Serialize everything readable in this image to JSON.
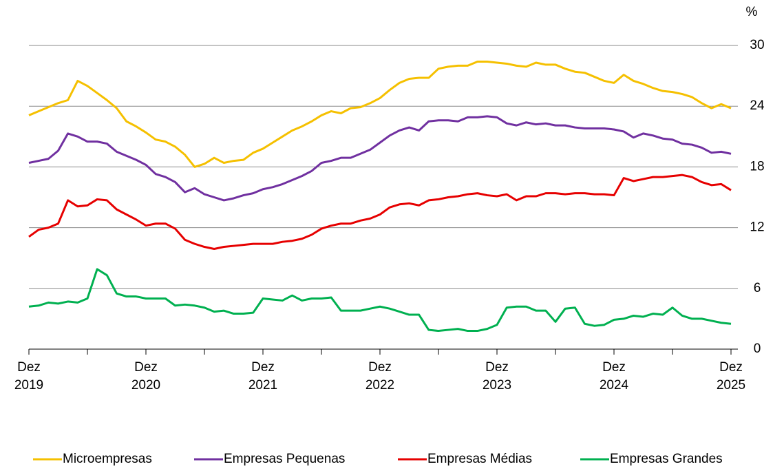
{
  "chart_data": {
    "type": "line",
    "ylabel": "%",
    "categories": [
      "Dez 2019",
      null,
      null,
      null,
      null,
      null,
      null,
      null,
      null,
      null,
      null,
      null,
      "Dez 2020",
      null,
      null,
      null,
      null,
      null,
      null,
      null,
      null,
      null,
      null,
      null,
      "Dez 2021",
      null,
      null,
      null,
      null,
      null,
      null,
      null,
      null,
      null,
      null,
      null,
      "Dez 2022",
      null,
      null,
      null,
      null,
      null,
      null,
      null,
      null,
      null,
      null,
      null,
      "Dez 2023",
      null,
      null,
      null,
      null,
      null,
      null,
      null,
      null,
      null,
      null,
      null,
      "Dez 2024",
      null,
      null,
      null,
      null,
      null,
      null,
      null,
      null,
      null,
      null,
      null,
      "Dez 2025"
    ],
    "ylim": [
      0,
      30
    ],
    "yticks": [
      0,
      6,
      12,
      18,
      24,
      30
    ],
    "grid": true,
    "legend": "bottom",
    "series": [
      {
        "name": "Microempresas",
        "color": "#f5c000",
        "values": [
          23.1,
          23.5,
          23.9,
          24.3,
          24.6,
          26.5,
          26.0,
          25.3,
          24.6,
          23.8,
          22.5,
          22.0,
          21.4,
          20.7,
          20.5,
          20.0,
          19.2,
          18.0,
          18.3,
          18.9,
          18.4,
          18.6,
          18.7,
          19.4,
          19.8,
          20.4,
          21.0,
          21.6,
          22.0,
          22.5,
          23.1,
          23.5,
          23.3,
          23.8,
          23.9,
          24.3,
          24.8,
          25.6,
          26.3,
          26.7,
          26.8,
          26.8,
          27.7,
          27.9,
          28.0,
          28.0,
          28.4,
          28.4,
          28.3,
          28.2,
          28.0,
          27.9,
          28.3,
          28.1,
          28.1,
          27.7,
          27.4,
          27.3,
          26.9,
          26.5,
          26.3,
          27.1,
          26.5,
          26.2,
          25.8,
          25.5,
          25.4,
          25.2,
          24.9,
          24.3,
          23.8,
          24.2,
          23.8
        ]
      },
      {
        "name": "Empresas Pequenas",
        "color": "#7030a0",
        "values": [
          18.4,
          18.6,
          18.8,
          19.6,
          21.3,
          21.0,
          20.5,
          20.5,
          20.3,
          19.5,
          19.1,
          18.7,
          18.2,
          17.3,
          17.0,
          16.5,
          15.5,
          15.9,
          15.3,
          15.0,
          14.7,
          14.9,
          15.2,
          15.4,
          15.8,
          16.0,
          16.3,
          16.7,
          17.1,
          17.6,
          18.4,
          18.6,
          18.9,
          18.9,
          19.3,
          19.7,
          20.4,
          21.1,
          21.6,
          21.9,
          21.6,
          22.5,
          22.6,
          22.6,
          22.5,
          22.9,
          22.9,
          23.0,
          22.9,
          22.3,
          22.1,
          22.4,
          22.2,
          22.3,
          22.1,
          22.1,
          21.9,
          21.8,
          21.8,
          21.8,
          21.7,
          21.5,
          20.9,
          21.3,
          21.1,
          20.8,
          20.7,
          20.3,
          20.2,
          19.9,
          19.4,
          19.5,
          19.3
        ]
      },
      {
        "name": "Empresas Médias",
        "color": "#e60000",
        "values": [
          11.1,
          11.8,
          12.0,
          12.4,
          14.7,
          14.1,
          14.2,
          14.8,
          14.7,
          13.8,
          13.3,
          12.8,
          12.2,
          12.4,
          12.4,
          11.9,
          10.8,
          10.4,
          10.1,
          9.9,
          10.1,
          10.2,
          10.3,
          10.4,
          10.4,
          10.4,
          10.6,
          10.7,
          10.9,
          11.3,
          11.9,
          12.2,
          12.4,
          12.4,
          12.7,
          12.9,
          13.3,
          14.0,
          14.3,
          14.4,
          14.2,
          14.7,
          14.8,
          15.0,
          15.1,
          15.3,
          15.4,
          15.2,
          15.1,
          15.3,
          14.7,
          15.1,
          15.1,
          15.4,
          15.4,
          15.3,
          15.4,
          15.4,
          15.3,
          15.3,
          15.2,
          16.9,
          16.6,
          16.8,
          17.0,
          17.0,
          17.1,
          17.2,
          17.0,
          16.5,
          16.2,
          16.3,
          15.7
        ]
      },
      {
        "name": "Empresas Grandes",
        "color": "#00b050",
        "values": [
          4.2,
          4.3,
          4.6,
          4.5,
          4.7,
          4.6,
          5.0,
          7.9,
          7.3,
          5.5,
          5.2,
          5.2,
          5.0,
          5.0,
          5.0,
          4.3,
          4.4,
          4.3,
          4.1,
          3.7,
          3.8,
          3.5,
          3.5,
          3.6,
          5.0,
          4.9,
          4.8,
          5.3,
          4.8,
          5.0,
          5.0,
          5.1,
          3.8,
          3.8,
          3.8,
          4.0,
          4.2,
          4.0,
          3.7,
          3.4,
          3.4,
          1.9,
          1.8,
          1.9,
          2.0,
          1.8,
          1.8,
          2.0,
          2.4,
          4.1,
          4.2,
          4.2,
          3.8,
          3.8,
          2.7,
          4.0,
          4.1,
          2.5,
          2.3,
          2.4,
          2.9,
          3.0,
          3.3,
          3.2,
          3.5,
          3.4,
          4.1,
          3.3,
          3.0,
          3.0,
          2.8,
          2.6,
          2.5
        ]
      }
    ]
  }
}
